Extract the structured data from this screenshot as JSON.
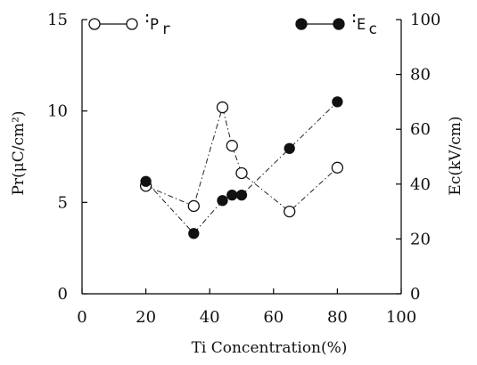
{
  "chart_data": {
    "type": "scatter",
    "xlabel": "Ti Concentration(%)",
    "ylabel": "Pr(μC/cm²)",
    "y2label": "Ec(kV/cm)",
    "xlim": [
      0,
      100
    ],
    "ylim": [
      0,
      15
    ],
    "y2lim": [
      0,
      100
    ],
    "xticks": [
      "0",
      "20",
      "40",
      "60",
      "80",
      "100"
    ],
    "yticks": [
      "0",
      "5",
      "10",
      "15"
    ],
    "y2ticks": [
      "0",
      "20",
      "40",
      "60",
      "80",
      "100"
    ],
    "grid": false,
    "legend_placement": "top",
    "series": [
      {
        "name": "Pr",
        "axis": "left",
        "marker": "open-circle",
        "x": [
          20,
          35,
          44,
          47,
          50,
          65,
          80
        ],
        "values": [
          5.9,
          4.8,
          10.2,
          8.1,
          6.6,
          4.5,
          6.9
        ]
      },
      {
        "name": "Ec",
        "axis": "right",
        "marker": "filled-circle",
        "x": [
          20,
          35,
          44,
          47,
          50,
          65,
          80
        ],
        "values": [
          41,
          22,
          34,
          36,
          36,
          53,
          70
        ]
      }
    ],
    "legend": [
      {
        "label": "P",
        "subscript": "r",
        "marker": "open-circle"
      },
      {
        "label": "E",
        "subscript": "c",
        "marker": "filled-circle"
      }
    ]
  }
}
